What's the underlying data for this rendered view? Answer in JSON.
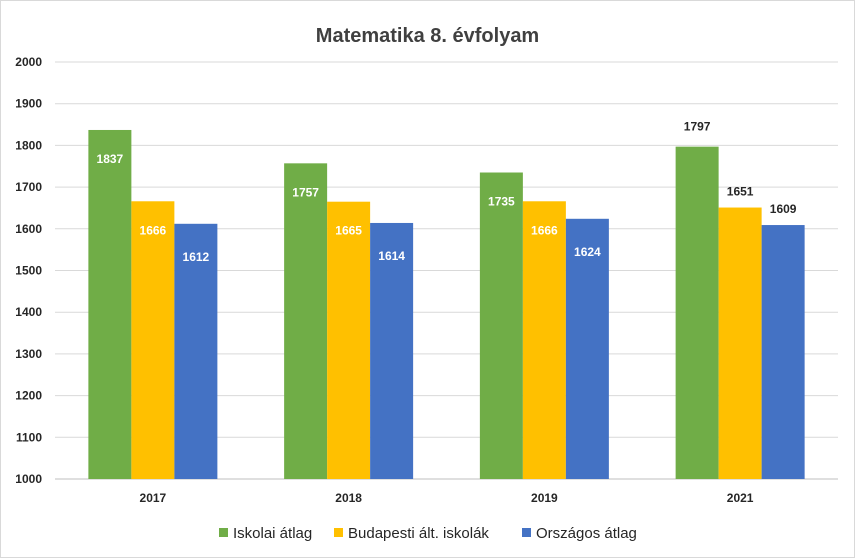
{
  "chart_data": {
    "type": "bar",
    "title": "Matematika 8. évfolyam",
    "categories": [
      "2017",
      "2018",
      "2019",
      "2021"
    ],
    "series": [
      {
        "name": "Iskolai átlag",
        "color": "#70ad47",
        "values": [
          1837,
          1757,
          1735,
          1797
        ]
      },
      {
        "name": "Budapesti ált. iskolák",
        "color": "#ffc000",
        "values": [
          1666,
          1665,
          1666,
          1651
        ]
      },
      {
        "name": "Országos átlag",
        "color": "#4472c4",
        "values": [
          1612,
          1614,
          1624,
          1609
        ]
      }
    ],
    "ylim": [
      1000,
      2000
    ],
    "yticks": [
      1000,
      1100,
      1200,
      1300,
      1400,
      1500,
      1600,
      1700,
      1800,
      1900,
      2000
    ],
    "grid": true,
    "legend": "bottom",
    "data_label_placement": [
      "inside",
      "inside",
      "inside",
      "above"
    ]
  }
}
